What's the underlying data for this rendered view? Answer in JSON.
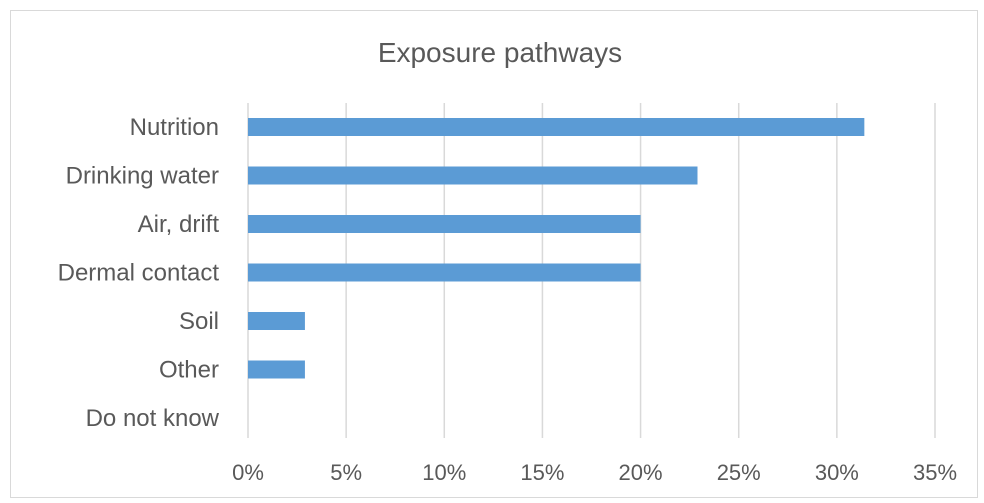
{
  "chart_data": {
    "type": "bar",
    "orientation": "horizontal",
    "title": "Exposure pathways",
    "categories": [
      "Nutrition",
      "Drinking water",
      "Air, drift",
      "Dermal contact",
      "Soil",
      "Other",
      "Do not know"
    ],
    "values": [
      31.4,
      22.9,
      20.0,
      20.0,
      2.9,
      2.9,
      0
    ],
    "value_unit": "%",
    "xlim": [
      0,
      35
    ],
    "xticks": [
      "0%",
      "5%",
      "10%",
      "15%",
      "20%",
      "25%",
      "30%",
      "35%"
    ],
    "grid": true,
    "legend": "none",
    "bar_color": "#5b9bd5"
  }
}
